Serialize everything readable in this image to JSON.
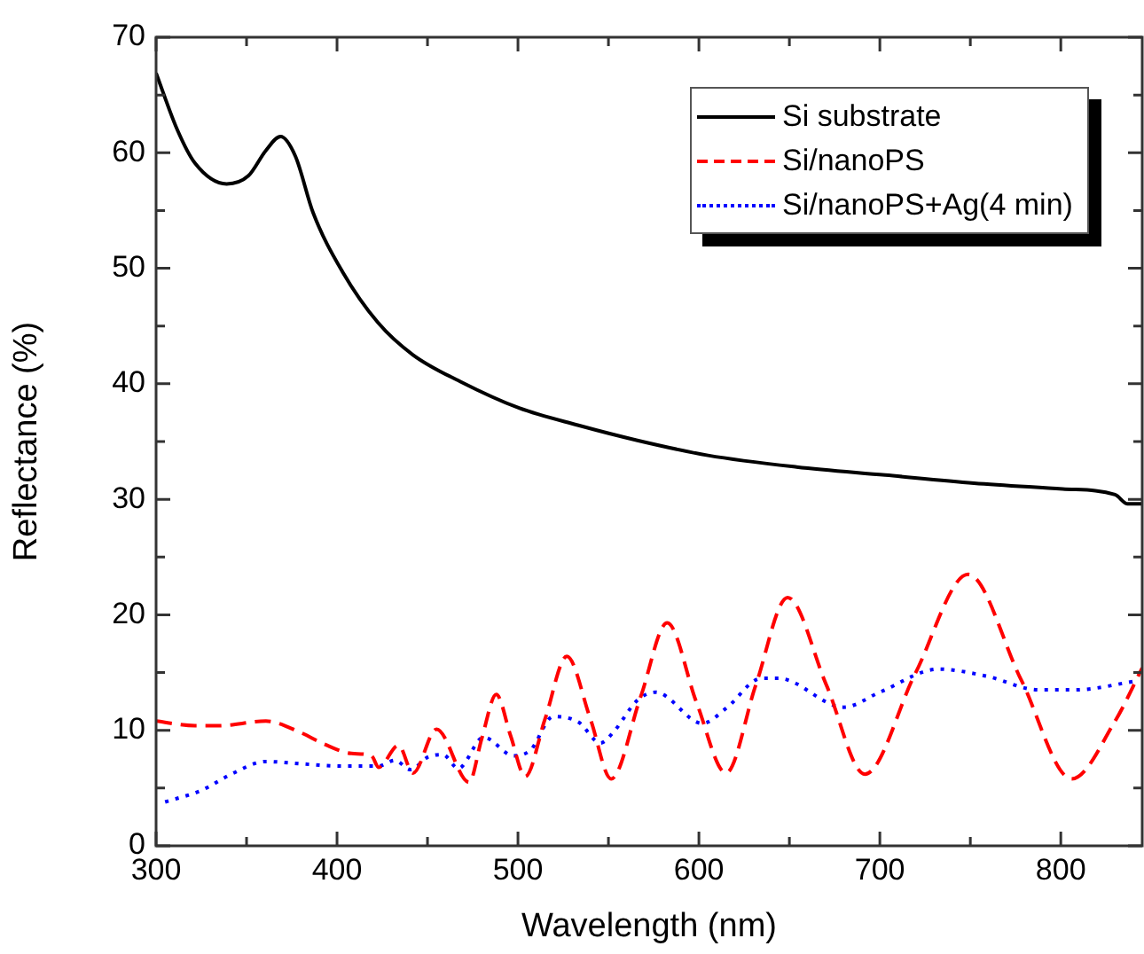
{
  "chart_data": {
    "type": "line",
    "xlabel": "Wavelength (nm)",
    "ylabel": "Reflectance (%)",
    "xlim": [
      300,
      845
    ],
    "xticks": [
      300,
      400,
      500,
      600,
      700,
      800
    ],
    "ylim": [
      0,
      70
    ],
    "yticks": [
      0,
      10,
      20,
      30,
      40,
      50,
      60,
      70
    ],
    "grid": false,
    "legend": "top right",
    "marker": "none",
    "series": [
      {
        "name": "Si substrate",
        "color": "#000000",
        "line_style": "solid",
        "x": [
          300,
          311.7,
          321.5,
          339,
          351,
          360.7,
          368.8,
          377,
          386.8,
          403,
          422.6,
          442,
          468,
          500.6,
          533.5,
          566,
          605,
          654,
          703,
          752,
          801,
          830,
          837,
          845
        ],
        "values": [
          66.9,
          62.0,
          59.1,
          57.3,
          58.0,
          60.2,
          61.4,
          59.7,
          54.8,
          49.7,
          45.3,
          42.5,
          40.2,
          37.9,
          36.4,
          35.1,
          33.8,
          32.8,
          32.1,
          31.4,
          30.9,
          30.4,
          29.6,
          29.6
        ]
      },
      {
        "name": "Si/nanoPS",
        "color": "#ff0000",
        "line_style": "dashed",
        "x": [
          300,
          321.5,
          334.5,
          360.7,
          380,
          393,
          408,
          419,
          423,
          434,
          442,
          455,
          473,
          480,
          488,
          496,
          504,
          515,
          527,
          540,
          551.5,
          567.8,
          582.5,
          598.7,
          615,
          631.4,
          649,
          670.5,
          691.7,
          719.5,
          748.8,
          778,
          806,
          830,
          845
        ],
        "values": [
          10.8,
          10.4,
          10.4,
          10.8,
          9.8,
          8.8,
          8.0,
          7.8,
          6.8,
          8.7,
          6.3,
          10.1,
          5.5,
          9.3,
          13.1,
          9.5,
          6.0,
          11,
          16.4,
          11,
          5.8,
          12.9,
          19.3,
          12.4,
          6.3,
          13.9,
          21.5,
          13.9,
          6.2,
          14.9,
          23.5,
          14.4,
          5.8,
          10.8,
          15.4
        ]
      },
      {
        "name": "Si/nanoPS+Ag(4 min)",
        "color": "#0000ff",
        "line_style": "dotted",
        "x": [
          305,
          325,
          342.7,
          360.7,
          380,
          403,
          422.6,
          432,
          440.6,
          450.4,
          458.5,
          467,
          481,
          497.6,
          507,
          519.5,
          533.5,
          545.6,
          553,
          566,
          576,
          602,
          615,
          634.6,
          644,
          680,
          700,
          732.5,
          758.6,
          788,
          807.5,
          843
        ],
        "values": [
          3.8,
          4.8,
          6.3,
          7.3,
          7.1,
          6.9,
          6.9,
          7.4,
          6.6,
          7.7,
          7.9,
          6.7,
          9.4,
          7.8,
          8.3,
          11.2,
          10.7,
          8.9,
          9.9,
          12.6,
          13.3,
          10.6,
          11.9,
          14.5,
          14.5,
          12.0,
          13.3,
          15.3,
          14.7,
          13.5,
          13.5,
          14.3
        ]
      }
    ]
  }
}
